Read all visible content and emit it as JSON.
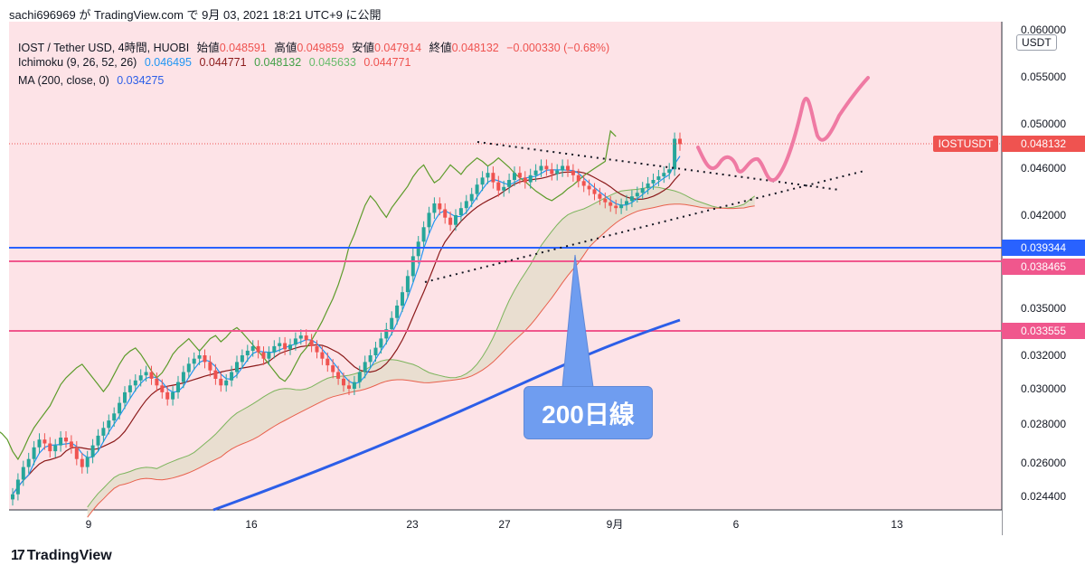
{
  "header": {
    "caption": "sachi696969 が TradingView.com で 9月 03, 2021 18:21 UTC+9 に公開"
  },
  "legend": {
    "symbol": "IOST / Tether USD, 4時間, HUOBI",
    "open_label": "始値",
    "open": "0.048591",
    "high_label": "高値",
    "high": "0.049859",
    "low_label": "安値",
    "low": "0.047914",
    "close_label": "終値",
    "close": "0.048132",
    "change": "−0.000330 (−0.68%)",
    "ichimoku_label": "Ichimoku (9, 26, 52, 26)",
    "ichimoku_values": [
      "0.046495",
      "0.044771",
      "0.048132",
      "0.045633",
      "0.044771"
    ],
    "ma_label": "MA (200, close, 0)",
    "ma_value": "0.034275"
  },
  "price_axis": {
    "currency": "USDT",
    "ticks": [
      "0.060000",
      "0.055000",
      "0.050000",
      "0.046000",
      "0.042000",
      "0.035000",
      "0.032000",
      "0.030000",
      "0.028000",
      "0.026000",
      "0.024400"
    ],
    "last_price_symbol": "IOSTUSDT",
    "last_price": "0.048132",
    "level_labels": [
      "0.039344",
      "0.038465",
      "0.033555"
    ]
  },
  "time_axis": {
    "ticks": [
      "9",
      "16",
      "23",
      "27",
      "9月",
      "6",
      "13"
    ]
  },
  "annotation": {
    "callout_text": "200日線"
  },
  "footer": {
    "brand": "TradingView"
  },
  "colors": {
    "chart_bg": "#fde3e7",
    "up_candle": "#26a69a",
    "down_candle": "#ef5350",
    "tenkan": "#2196f3",
    "kijun": "#8b1a1a",
    "chikou": "#5c9b2a",
    "span_a": "#7cb45c",
    "span_b": "#e8604c",
    "cloud": "#e2dcc8",
    "ma200": "#2c5ee8",
    "level_blue": "#2962ff",
    "level_pink": "#f0578d",
    "forecast": "#ef7aa3",
    "callout": "#6f9df0"
  },
  "chart_data": {
    "type": "candlestick",
    "symbol": "IOST / Tether USD",
    "interval": "4時間",
    "exchange": "HUOBI",
    "last": {
      "open": 0.048591,
      "high": 0.049859,
      "low": 0.047914,
      "close": 0.048132,
      "change": -0.00033,
      "change_pct": -0.68
    },
    "ichimoku": {
      "conversion": 0.046495,
      "base": 0.044771,
      "lagging": 0.048132,
      "lead_a": 0.045633,
      "lead_b": 0.044771
    },
    "ma200": 0.034275,
    "horizontal_levels": [
      0.039344,
      0.038465,
      0.033555
    ],
    "date_axis": [
      "9",
      "16",
      "23",
      "27",
      "9月",
      "6",
      "13"
    ],
    "price_ticks": [
      0.06,
      0.055,
      0.05,
      0.046,
      0.042,
      0.035,
      0.032,
      0.03,
      0.028,
      0.026,
      0.0244
    ],
    "candle_closes": [
      0.0245,
      0.0252,
      0.0258,
      0.0262,
      0.0268,
      0.0272,
      0.027,
      0.0266,
      0.0269,
      0.0273,
      0.0271,
      0.0268,
      0.0262,
      0.0258,
      0.0263,
      0.0269,
      0.0274,
      0.0278,
      0.0282,
      0.0286,
      0.0292,
      0.0298,
      0.0302,
      0.0305,
      0.0308,
      0.031,
      0.0306,
      0.0302,
      0.0298,
      0.0294,
      0.0298,
      0.0304,
      0.031,
      0.0315,
      0.0318,
      0.032,
      0.0316,
      0.0311,
      0.0306,
      0.0302,
      0.0305,
      0.031,
      0.0316,
      0.032,
      0.0323,
      0.0326,
      0.0322,
      0.0318,
      0.0322,
      0.0326,
      0.0328,
      0.0324,
      0.0327,
      0.0331,
      0.0333,
      0.033,
      0.0326,
      0.0322,
      0.0318,
      0.0314,
      0.031,
      0.0306,
      0.0302,
      0.03,
      0.0304,
      0.031,
      0.0316,
      0.032,
      0.0325,
      0.0331,
      0.0337,
      0.0344,
      0.0352,
      0.0362,
      0.0374,
      0.0388,
      0.0398,
      0.041,
      0.0422,
      0.043,
      0.0425,
      0.0418,
      0.0412,
      0.042,
      0.0426,
      0.0432,
      0.0438,
      0.0446,
      0.0452,
      0.0456,
      0.0448,
      0.0441,
      0.0444,
      0.045,
      0.0456,
      0.0452,
      0.0448,
      0.0454,
      0.0458,
      0.0462,
      0.0459,
      0.0455,
      0.0458,
      0.0462,
      0.0458,
      0.0454,
      0.0449,
      0.0445,
      0.0442,
      0.0438,
      0.0434,
      0.0431,
      0.0428,
      0.0426,
      0.0429,
      0.0432,
      0.0436,
      0.0439,
      0.0443,
      0.0447,
      0.045,
      0.0453,
      0.0456,
      0.0459,
      0.0486,
      0.0481
    ]
  }
}
